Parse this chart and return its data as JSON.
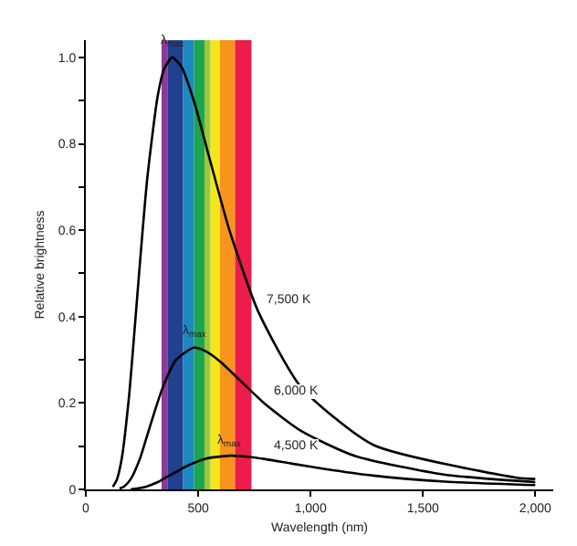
{
  "chart_data": {
    "type": "line",
    "xlabel": "Wavelength (nm)",
    "ylabel": "Relative brightness",
    "xlim": [
      0,
      2080
    ],
    "ylim": [
      0,
      1.04
    ],
    "xticks": [
      0,
      500,
      {
        "value": 1000,
        "label": "1,000"
      },
      {
        "value": 1500,
        "label": "1,500"
      },
      {
        "value": 2000,
        "label": "2,000"
      }
    ],
    "yticks": [
      0,
      {
        "value": 0.1,
        "label": null
      },
      0.2,
      {
        "value": 0.3,
        "label": null
      },
      0.4,
      {
        "value": 0.5,
        "label": null
      },
      0.6,
      {
        "value": 0.7,
        "label": null
      },
      0.8,
      {
        "value": 0.9,
        "label": null
      },
      {
        "value": 1.0,
        "label": "1.0"
      }
    ],
    "grid": false,
    "marker": "none",
    "line_style": "solid",
    "series": [
      {
        "color": "#000000",
        "x": [
          120,
          137,
          160,
          192,
          213,
          240,
          274,
          320,
          349,
          384,
          426,
          480,
          548,
          639,
          767,
          959,
          1279,
          1918,
          2000
        ],
        "values": [
          0.006,
          0.021,
          0.072,
          0.214,
          0.344,
          0.519,
          0.723,
          0.911,
          0.974,
          1.0,
          0.978,
          0.901,
          0.771,
          0.6,
          0.412,
          0.236,
          0.103,
          0.027,
          0.024
        ]
      },
      {
        "color": "#000000",
        "x": [
          150,
          171,
          200,
          240,
          266,
          300,
          343,
          400,
          480,
          533,
          600,
          685,
          799,
          959,
          1199,
          1599,
          2000
        ],
        "values": [
          0.002,
          0.007,
          0.024,
          0.07,
          0.113,
          0.17,
          0.237,
          0.299,
          0.328,
          0.32,
          0.295,
          0.253,
          0.197,
          0.135,
          0.077,
          0.034,
          0.017
        ]
      },
      {
        "color": "#000000",
        "x": [
          200,
          228,
          266,
          320,
          355,
          400,
          457,
          533,
          639,
          710,
          799,
          913,
          1066,
          1279,
          1599,
          2000
        ],
        "values": [
          0,
          0.002,
          0.006,
          0.017,
          0.027,
          0.04,
          0.056,
          0.071,
          0.078,
          0.076,
          0.07,
          0.06,
          0.047,
          0.032,
          0.018,
          0.01
        ]
      }
    ],
    "bands": [
      {
        "axis": "x",
        "from": 337,
        "to": 365,
        "color": "#8b3a96"
      },
      {
        "axis": "x",
        "from": 365,
        "to": 433,
        "color": "#21408f"
      },
      {
        "axis": "x",
        "from": 433,
        "to": 482,
        "color": "#1e88c0"
      },
      {
        "axis": "x",
        "from": 482,
        "to": 528,
        "color": "#1aa550"
      },
      {
        "axis": "x",
        "from": 528,
        "to": 555,
        "color": "#9cc83c"
      },
      {
        "axis": "x",
        "from": 555,
        "to": 596,
        "color": "#f5e61a"
      },
      {
        "axis": "x",
        "from": 596,
        "to": 664,
        "color": "#f7941d"
      },
      {
        "axis": "x",
        "from": 664,
        "to": 737,
        "color": "#ec1c4b"
      }
    ],
    "annotations": [
      {
        "text": "λ$_{max}$",
        "x": 384,
        "y": 1.0
      },
      {
        "text": "λ$_{max}$",
        "x": 480,
        "y": 0.328
      },
      {
        "text": "λ$_{max}$",
        "x": 639,
        "y": 0.078
      },
      {
        "text": "7,500 K",
        "x": 767,
        "y": 0.412
      },
      {
        "text": "6,000 K",
        "x": 799,
        "y": 0.197
      },
      {
        "text": "4,500 K",
        "x": 799,
        "y": 0.07
      }
    ]
  }
}
